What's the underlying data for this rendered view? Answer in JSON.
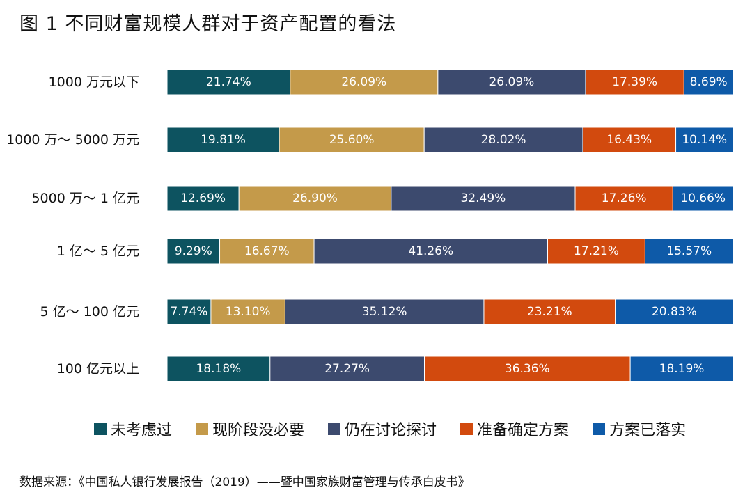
{
  "title": "图 1  不同财富规模人群对于资产配置的看法",
  "source": "数据来源：《中国私人银行发展报告（2019）——暨中国家族财富管理与传承白皮书》",
  "chart_data": {
    "type": "bar",
    "orientation": "horizontal",
    "stacked": true,
    "percent": true,
    "categories": [
      "1000 万元以下",
      "1000 万～ 5000 万元",
      "5000 万～ 1 亿元",
      "1 亿～ 5 亿元",
      "5 亿～ 100 亿元",
      "100 亿元以上"
    ],
    "series": [
      {
        "name": "未考虑过",
        "color": "#0d5360",
        "values": [
          21.74,
          19.81,
          12.69,
          9.29,
          7.74,
          18.18
        ],
        "labels": [
          "21.74%",
          "19.81%",
          "12.69%",
          "9.29%",
          "7.74%",
          "18.18%"
        ]
      },
      {
        "name": "现阶段没必要",
        "color": "#c49a4a",
        "values": [
          26.09,
          25.6,
          26.9,
          16.67,
          13.1,
          0
        ],
        "labels": [
          "26.09%",
          "25.60%",
          "26.90%",
          "16.67%",
          "13.10%",
          ""
        ]
      },
      {
        "name": "仍在讨论探讨",
        "color": "#3c4a6e",
        "values": [
          26.09,
          28.02,
          32.49,
          41.26,
          35.12,
          27.27
        ],
        "labels": [
          "26.09%",
          "28.02%",
          "32.49%",
          "41.26%",
          "35.12%",
          "27.27%"
        ]
      },
      {
        "name": "准备确定方案",
        "color": "#d24a0e",
        "values": [
          17.39,
          16.43,
          17.26,
          17.21,
          23.21,
          36.36
        ],
        "labels": [
          "17.39%",
          "16.43%",
          "17.26%",
          "17.21%",
          "23.21%",
          "36.36%"
        ]
      },
      {
        "name": "方案已落实",
        "color": "#0e5aa8",
        "values": [
          8.69,
          10.14,
          10.66,
          15.57,
          20.83,
          18.19
        ],
        "labels": [
          "8.69%",
          "10.14%",
          "10.66%",
          "15.57%",
          "20.83%",
          "18.19%"
        ]
      }
    ],
    "xlim": [
      0,
      100
    ],
    "legend_position": "bottom",
    "grid": false
  }
}
